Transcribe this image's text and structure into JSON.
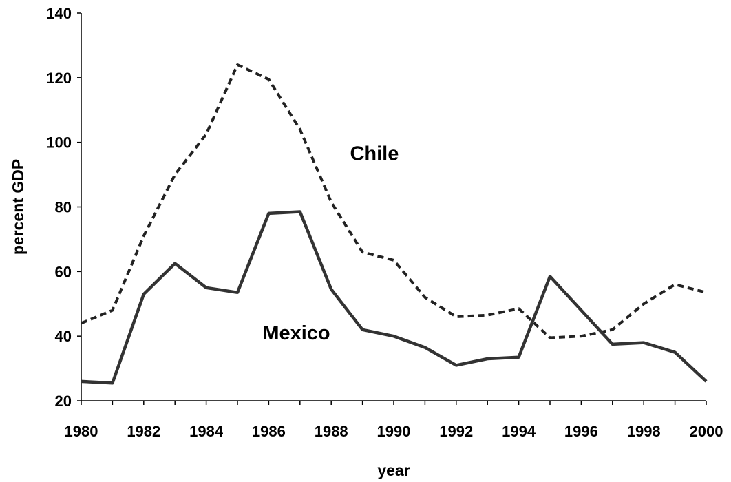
{
  "chart_data": {
    "type": "line",
    "title": "",
    "xlabel": "year",
    "ylabel": "percent GDP",
    "xlim": [
      1980,
      2000
    ],
    "ylim": [
      20,
      140
    ],
    "x_ticks": [
      1980,
      1982,
      1984,
      1986,
      1988,
      1990,
      1992,
      1994,
      1996,
      1998,
      2000
    ],
    "y_ticks": [
      20,
      40,
      60,
      80,
      100,
      120,
      140
    ],
    "grid": false,
    "legend": "none",
    "x": [
      1980,
      1981,
      1982,
      1983,
      1984,
      1985,
      1986,
      1987,
      1988,
      1989,
      1990,
      1991,
      1992,
      1993,
      1994,
      1995,
      1996,
      1997,
      1998,
      1999,
      2000
    ],
    "series": [
      {
        "name": "Chile",
        "style": "dashed",
        "color": "#222222",
        "values": [
          44,
          48,
          71,
          90,
          102.5,
          124,
          119.5,
          104,
          81.5,
          66,
          63.5,
          52,
          46,
          46.5,
          48.5,
          39.5,
          40,
          42,
          50,
          56,
          53.5
        ]
      },
      {
        "name": "Mexico",
        "style": "solid",
        "color": "#333333",
        "values": [
          26,
          25.5,
          53,
          62.5,
          55,
          53.5,
          78,
          78.5,
          54.5,
          42,
          40,
          36.5,
          31,
          33,
          33.5,
          58.5,
          48,
          37.5,
          38,
          35,
          26
        ]
      }
    ],
    "annotations": [
      {
        "text": "Chile",
        "series": "Chile",
        "x": 1988.6,
        "y": 94.5
      },
      {
        "text": "Mexico",
        "series": "Mexico",
        "x": 1985.8,
        "y": 39
      }
    ]
  }
}
